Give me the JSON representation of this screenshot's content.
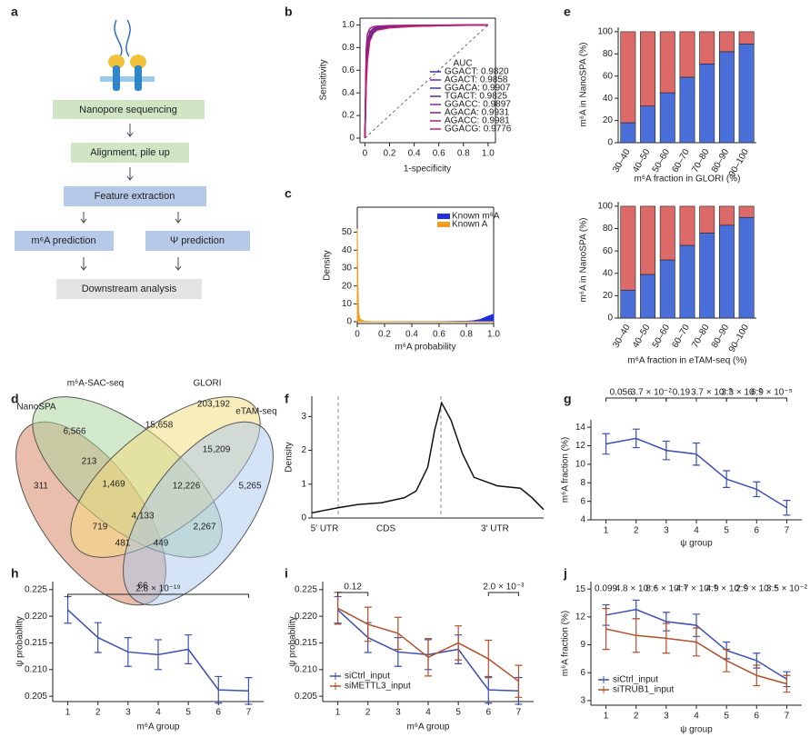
{
  "panel_labels": [
    "a",
    "b",
    "c",
    "d",
    "e",
    "f",
    "g",
    "h",
    "i",
    "j"
  ],
  "flowchart": {
    "steps": [
      "Nanopore sequencing",
      "Alignment, pile up",
      "Feature extraction",
      "m⁶A prediction",
      "Ψ prediction",
      "Downstream analysis"
    ]
  },
  "venn": {
    "sets": [
      "NanoSPA",
      "m⁶A-SAC-seq",
      "GLORI",
      "eTAM-seq"
    ],
    "regions": [
      "311",
      "6,566",
      "203,192",
      "5,265",
      "213",
      "15,658",
      "15,209",
      "1,469",
      "12,226",
      "719",
      "4,133",
      "2,267",
      "481",
      "449",
      "66"
    ]
  },
  "chart_data": [
    {
      "type": "line",
      "frame": "box",
      "diagonal": true,
      "xlabel": "1-specificity",
      "ylabel": "Sensitivity",
      "legend": "lower right",
      "legend_title": "AUC",
      "x": [
        0,
        0.01,
        0.02,
        0.04,
        0.07,
        0.1,
        0.2,
        0.4,
        0.7,
        1
      ],
      "xlim": [
        -0.04,
        1.06
      ],
      "ylim": [
        -0.04,
        1.06
      ],
      "xticks": [
        0,
        0.2,
        0.4,
        0.6,
        0.8,
        {
          "value": 1,
          "label": "1.0"
        }
      ],
      "yticks": [
        0,
        0.2,
        0.4,
        0.6,
        0.8,
        {
          "value": 1,
          "label": "1.0"
        }
      ],
      "series": [
        {
          "name": "GGACT: 0.9820",
          "color": "#3b2fb0",
          "values": [
            0,
            0.5,
            0.72,
            0.88,
            0.94,
            0.96,
            0.98,
            0.99,
            0.997,
            1
          ]
        },
        {
          "name": "AGACT: 0.9858",
          "color": "#5a2fb5",
          "values": [
            0,
            0.55,
            0.76,
            0.9,
            0.95,
            0.97,
            0.985,
            0.992,
            0.998,
            1
          ]
        },
        {
          "name": "GGACA: 0.9907",
          "color": "#3a3aa0",
          "values": [
            0,
            0.62,
            0.82,
            0.93,
            0.96,
            0.975,
            0.988,
            0.995,
            0.998,
            1
          ]
        },
        {
          "name": "TGACT: 0.9825",
          "color": "#4b2a8f",
          "values": [
            0,
            0.52,
            0.73,
            0.89,
            0.94,
            0.96,
            0.98,
            0.99,
            0.997,
            1
          ]
        },
        {
          "name": "GGACC: 0.9897",
          "color": "#7a2a9a",
          "values": [
            0,
            0.6,
            0.8,
            0.92,
            0.96,
            0.975,
            0.987,
            0.994,
            0.998,
            1
          ]
        },
        {
          "name": "AGACA: 0.9931",
          "color": "#8a1f86",
          "values": [
            0,
            0.66,
            0.85,
            0.94,
            0.97,
            0.98,
            0.99,
            0.996,
            0.999,
            1
          ]
        },
        {
          "name": "AGACC: 0.9981",
          "color": "#a0207f",
          "values": [
            0,
            0.78,
            0.92,
            0.97,
            0.985,
            0.99,
            0.995,
            0.998,
            0.999,
            1
          ]
        },
        {
          "name": "GGACG: 0.9776",
          "color": "#c0206f",
          "values": [
            0,
            0.45,
            0.68,
            0.86,
            0.93,
            0.955,
            0.975,
            0.988,
            0.996,
            1
          ]
        }
      ]
    },
    {
      "type": "area",
      "frame": "box",
      "xlabel": "m⁶A probability",
      "ylabel": "Density",
      "legend": "upper right",
      "x": [
        0,
        0.005,
        0.01,
        0.02,
        0.05,
        0.1,
        0.2,
        0.4,
        0.6,
        0.8,
        0.85,
        0.9,
        0.95,
        1
      ],
      "xlim": [
        0,
        1
      ],
      "ylim": [
        -1,
        64
      ],
      "xticks": [
        0,
        0.2,
        0.4,
        0.6,
        0.8,
        {
          "value": 1,
          "label": "1.0"
        }
      ],
      "yticks": [
        0,
        10,
        20,
        30,
        40,
        50
      ],
      "series": [
        {
          "name": "Known m⁶A",
          "color": "#1f2fe0",
          "values": [
            0,
            0,
            0,
            0,
            0,
            0,
            0,
            0.05,
            0.1,
            0.3,
            0.5,
            1.2,
            2.8,
            4.2
          ]
        },
        {
          "name": "Known A",
          "color": "#f0a020",
          "values": [
            52,
            20,
            5,
            1.5,
            0.4,
            0.1,
            0.05,
            0.02,
            0.01,
            0.01,
            0.01,
            0,
            0,
            0
          ]
        }
      ]
    },
    {
      "type": "bar",
      "frame": "open",
      "xlabel": "m⁶A fraction in GLORI (%)",
      "ylabel": "m⁶A in NanoSPA (%)",
      "category_label_rotation": -60,
      "categories": [
        "30–40",
        "40–50",
        "50–60",
        "60–70",
        "70–80",
        "80–90",
        "90–100"
      ],
      "ylim": [
        0,
        104
      ],
      "yticks": [
        0,
        20,
        40,
        60,
        80,
        100
      ],
      "series": [
        {
          "color": "#4a6fd8",
          "values": [
            18,
            33,
            45,
            59,
            71,
            82,
            89
          ]
        },
        {
          "color": "#dc6a68",
          "values": [
            82,
            67,
            55,
            41,
            29,
            18,
            11
          ]
        }
      ]
    },
    {
      "type": "bar",
      "frame": "open",
      "xlabel": "m⁶A fraction in eTAM-seq (%)",
      "ylabel": "m⁶A in NanoSPA (%)",
      "category_label_rotation": -60,
      "categories": [
        "30–40",
        "40–50",
        "50–60",
        "60–70",
        "70–80",
        "80–90",
        "90–100"
      ],
      "ylim": [
        0,
        104
      ],
      "yticks": [
        0,
        20,
        40,
        60,
        80,
        100
      ],
      "series": [
        {
          "color": "#4a6fd8",
          "values": [
            25,
            39,
            52,
            65,
            76,
            83,
            90
          ]
        },
        {
          "color": "#dc6a68",
          "values": [
            75,
            61,
            48,
            35,
            24,
            17,
            10
          ]
        }
      ]
    },
    {
      "type": "line",
      "frame": "open",
      "ylabel": "Density",
      "color": "#111",
      "x": [
        0,
        0.05,
        0.11,
        0.2,
        0.3,
        0.4,
        0.45,
        0.5,
        0.53,
        0.56,
        0.6,
        0.65,
        0.7,
        0.8,
        0.9,
        0.95,
        1
      ],
      "values": [
        0.15,
        0.22,
        0.3,
        0.4,
        0.45,
        0.6,
        0.8,
        1.5,
        2.6,
        3.4,
        2.9,
        1.9,
        1.2,
        0.95,
        0.88,
        0.6,
        0.25
      ],
      "xlim": [
        0,
        1
      ],
      "ylim": [
        0,
        3.6
      ],
      "yticks": [
        0,
        1,
        2,
        3
      ],
      "boundaries": [
        0.114,
        0.557
      ],
      "region_labels": [
        {
          "label": "5′ UTR",
          "x": 0.055
        },
        {
          "label": "CDS",
          "x": 0.32
        },
        {
          "label": "3′ UTR",
          "x": 0.79
        }
      ]
    },
    {
      "type": "line",
      "frame": "open",
      "xlabel": "ψ group",
      "ylabel": "m⁶A fraction (%)",
      "color": "#3d4fb0",
      "x": [
        1,
        2,
        3,
        4,
        5,
        6,
        7
      ],
      "values": [
        12.2,
        12.8,
        11.5,
        11.1,
        8.4,
        7.3,
        5.3
      ],
      "errors": [
        1.1,
        1.0,
        1.0,
        1.2,
        0.9,
        0.8,
        0.8
      ],
      "xlim": [
        0.5,
        7.5
      ],
      "ylim": [
        4,
        14.8
      ],
      "xticks": [
        1,
        2,
        3,
        4,
        5,
        6,
        7
      ],
      "yticks": [
        4,
        6,
        8,
        10,
        12,
        14
      ],
      "brackets": [
        {
          "label": "0.056",
          "from": 1,
          "to": 2
        },
        {
          "label": "3.7 × 10⁻²",
          "from": 2,
          "to": 3
        },
        {
          "label": "0.19",
          "from": 3,
          "to": 4
        },
        {
          "label": "3.7 × 10⁻³",
          "from": 4,
          "to": 5
        },
        {
          "label": "3.3 × 10⁻²",
          "from": 5,
          "to": 6
        },
        {
          "label": "6.9 × 10⁻⁵",
          "from": 6,
          "to": 7
        }
      ]
    },
    {
      "type": "line",
      "frame": "open",
      "xlabel": "m⁶A group",
      "ylabel": "ψ probability",
      "color": "#3d4fb0",
      "x": [
        1,
        2,
        3,
        4,
        5,
        6,
        7
      ],
      "values": [
        0.2212,
        0.216,
        0.2133,
        0.2128,
        0.2138,
        0.2062,
        0.206
      ],
      "errors": [
        0.0025,
        0.0028,
        0.0027,
        0.0028,
        0.0027,
        0.0025,
        0.0025
      ],
      "xlim": [
        0.5,
        7.5
      ],
      "ylim": [
        0.204,
        0.2265
      ],
      "xticks": [
        1,
        2,
        3,
        4,
        5,
        6,
        7
      ],
      "yticks": [
        0.205,
        {
          "value": 0.21,
          "label": "0.210"
        },
        0.215,
        {
          "value": 0.22,
          "label": "0.220"
        },
        0.225
      ],
      "brackets": [
        {
          "label": "2.8 × 10⁻¹⁹",
          "from": 1,
          "to": 7
        }
      ]
    },
    {
      "type": "line",
      "frame": "open",
      "xlabel": "m⁶A group",
      "ylabel": "ψ probability",
      "legend": "lower left",
      "x": [
        1,
        2,
        3,
        4,
        5,
        6,
        7
      ],
      "xlim": [
        0.5,
        7.5
      ],
      "ylim": [
        0.204,
        0.2265
      ],
      "xticks": [
        1,
        2,
        3,
        4,
        5,
        6,
        7
      ],
      "yticks": [
        0.205,
        {
          "value": 0.21,
          "label": "0.210"
        },
        0.215,
        {
          "value": 0.22,
          "label": "0.220"
        },
        0.225
      ],
      "series": [
        {
          "name": "siCtrl_input",
          "color": "#3d4fb0",
          "values": [
            0.2212,
            0.216,
            0.2133,
            0.2128,
            0.2138,
            0.2062,
            0.206
          ],
          "errors": [
            0.0025,
            0.0028,
            0.0027,
            0.0028,
            0.0027,
            0.0025,
            0.0025
          ]
        },
        {
          "name": "siMETTL3_input",
          "color": "#b0502a",
          "values": [
            0.2215,
            0.2185,
            0.2168,
            0.2123,
            0.215,
            0.212,
            0.2078
          ],
          "errors": [
            0.003,
            0.0032,
            0.003,
            0.0035,
            0.0032,
            0.0035,
            0.003
          ]
        }
      ],
      "brackets": [
        {
          "label": "0.12",
          "from": 1,
          "to": 2
        },
        {
          "label": "2.0 × 10⁻³",
          "from": 6,
          "to": 7
        }
      ]
    },
    {
      "type": "line",
      "frame": "open",
      "xlabel": "ψ group",
      "ylabel": "m⁶A fraction (%)",
      "legend": "lower left",
      "x": [
        1,
        2,
        3,
        4,
        5,
        6,
        7
      ],
      "xlim": [
        0.5,
        7.5
      ],
      "ylim": [
        2.5,
        15.8
      ],
      "xticks": [
        1,
        2,
        3,
        4,
        5,
        6,
        7
      ],
      "yticks": [
        3,
        6,
        9,
        12,
        15
      ],
      "series": [
        {
          "name": "siCtrl_input",
          "color": "#3d4fb0",
          "values": [
            12.2,
            12.8,
            11.5,
            11.1,
            8.4,
            7.3,
            5.3
          ],
          "errors": [
            1.1,
            1.0,
            1.0,
            1.2,
            0.9,
            0.8,
            0.8
          ]
        },
        {
          "name": "siTRUB1_input",
          "color": "#b0502a",
          "values": [
            10.7,
            10.0,
            9.7,
            9.3,
            7.3,
            5.7,
            4.8
          ],
          "errors": [
            2.2,
            1.8,
            1.6,
            1.5,
            1.2,
            1.1,
            0.9
          ]
        }
      ],
      "point_labels": [
        "0.099",
        "4.8 × 10⁻⁴",
        "8.6 × 10⁻³",
        "4.7 × 10⁻³",
        "4.9 × 10⁻²",
        "2.9 × 10⁻⁴",
        "3.5 × 10⁻²"
      ]
    }
  ]
}
